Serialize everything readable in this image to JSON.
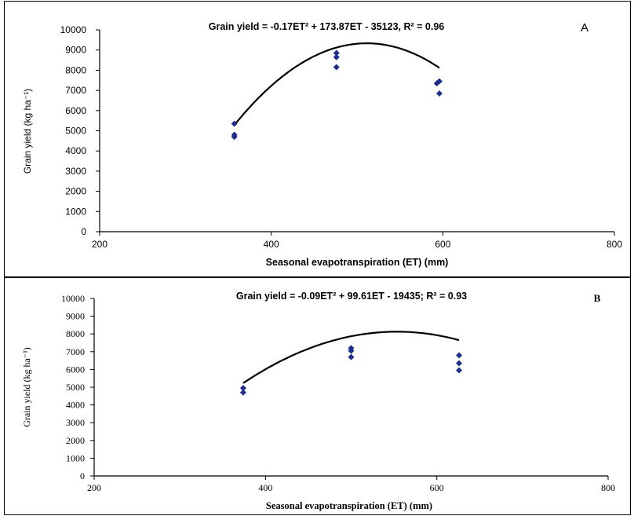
{
  "chart_data": [
    {
      "type": "scatter",
      "panel_label": "A",
      "title": "Grain yield = -0.17ET² + 173.87ET - 35123, R² = 0.96",
      "xlabel": "Seasonal evapotranspiration (ET) (mm)",
      "ylabel": "Grain yield (kg ha⁻¹)",
      "xlim": [
        200,
        800
      ],
      "ylim": [
        0,
        10000
      ],
      "x_ticks": [
        200,
        400,
        600,
        800
      ],
      "y_ticks": [
        0,
        1000,
        2000,
        3000,
        4000,
        5000,
        6000,
        7000,
        8000,
        9000,
        10000
      ],
      "grid": false,
      "legend": "none",
      "marker_color": "#1f2e8c",
      "points": [
        {
          "x": 357,
          "y": 5350
        },
        {
          "x": 357,
          "y": 4800
        },
        {
          "x": 357,
          "y": 4700
        },
        {
          "x": 476,
          "y": 8850
        },
        {
          "x": 476,
          "y": 8650
        },
        {
          "x": 476,
          "y": 8150
        },
        {
          "x": 596,
          "y": 7450
        },
        {
          "x": 593,
          "y": 7350
        },
        {
          "x": 596,
          "y": 6850
        }
      ],
      "fit": {
        "a": -0.17,
        "b": 173.87,
        "c": -35123,
        "x_range": [
          357,
          596
        ]
      }
    },
    {
      "type": "scatter",
      "panel_label": "B",
      "title": "Grain yield = -0.09ET² + 99.61ET - 19435; R² = 0.93",
      "xlabel": "Seasonal evapotranspiration (ET) (mm)",
      "ylabel": "Grain yield (kg ha⁻¹)",
      "xlim": [
        200,
        800
      ],
      "ylim": [
        0,
        10000
      ],
      "x_ticks": [
        200,
        400,
        600,
        800
      ],
      "y_ticks": [
        0,
        1000,
        2000,
        3000,
        4000,
        5000,
        6000,
        7000,
        8000,
        9000,
        10000
      ],
      "grid": false,
      "legend": "none",
      "marker_color": "#1f2e8c",
      "points": [
        {
          "x": 374,
          "y": 4950
        },
        {
          "x": 374,
          "y": 4700
        },
        {
          "x": 500,
          "y": 7200
        },
        {
          "x": 500,
          "y": 7050
        },
        {
          "x": 500,
          "y": 6700
        },
        {
          "x": 626,
          "y": 6800
        },
        {
          "x": 626,
          "y": 6350
        },
        {
          "x": 626,
          "y": 5950
        }
      ],
      "fit": {
        "a": -0.09,
        "b": 99.61,
        "c": -19435,
        "x_range": [
          374,
          626
        ]
      }
    }
  ]
}
